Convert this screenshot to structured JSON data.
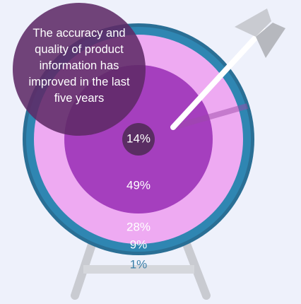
{
  "chart_data": {
    "type": "target",
    "title": "The accuracy and quality of product information has improved in the last five years",
    "values": [
      14,
      49,
      28,
      9,
      1
    ],
    "value_labels": [
      "14%",
      "49%",
      "28%",
      "9%",
      "1%"
    ],
    "colors": [
      "#5a2d63",
      "#a53fbe",
      "#eeaaf2",
      "#2f86b2",
      "#d5d7dc"
    ],
    "label_colors": [
      "#ffffff",
      "#ffffff",
      "#ffffff",
      "#ffffff",
      "#3a7fa8"
    ]
  }
}
